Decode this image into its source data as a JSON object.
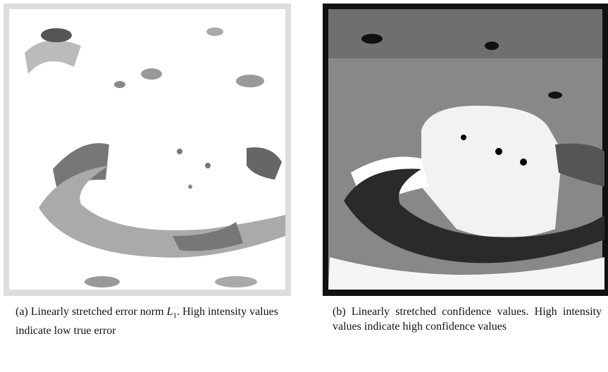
{
  "figure": {
    "subfigures": [
      {
        "caption": {
          "lead": "(a) Linearly stretched error norm ",
          "math": "L",
          "subscript": "1",
          "rest": ". High intensity values indicate low true error"
        }
      },
      {
        "caption": {
          "text": "(b) Linearly stretched confidence values. High intensity values indicate high confidence values"
        }
      }
    ]
  }
}
